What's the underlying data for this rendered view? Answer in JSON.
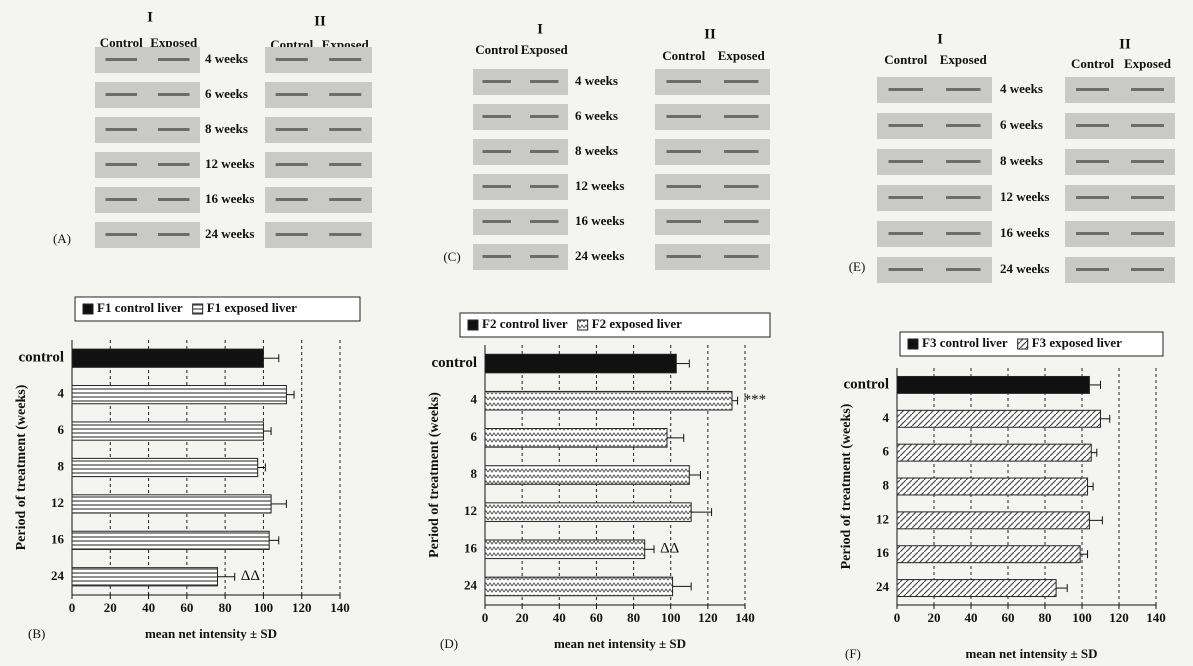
{
  "blots": [
    {
      "letter": "(A)",
      "groups": [
        {
          "name": "I",
          "columns": [
            "Control",
            "Exposed"
          ]
        },
        {
          "name": "II",
          "columns": [
            "Control",
            "Exposed"
          ]
        }
      ],
      "rows": [
        "4 weeks",
        "6 weeks",
        "8 weeks",
        "12 weeks",
        "16 weeks",
        "24 weeks"
      ]
    },
    {
      "letter": "(C)",
      "groups": [
        {
          "name": "I",
          "columns": [
            "Control",
            "Exposed"
          ]
        },
        {
          "name": "II",
          "columns": [
            "Control",
            "Exposed"
          ]
        }
      ],
      "rows": [
        "4 weeks",
        "6 weeks",
        "8 weeks",
        "12 weeks",
        "16 weeks",
        "24 weeks"
      ]
    },
    {
      "letter": "(E)",
      "groups": [
        {
          "name": "I",
          "columns": [
            "Control",
            "Exposed"
          ]
        },
        {
          "name": "II",
          "columns": [
            "Control",
            "Exposed"
          ]
        }
      ],
      "rows": [
        "4 weeks",
        "6 weeks",
        "8 weeks",
        "12 weeks",
        "16 weeks",
        "24 weeks"
      ]
    }
  ],
  "chart_data": [
    {
      "type": "bar",
      "letter": "(B)",
      "y_label": "Period of treatment (weeks)",
      "x_label": "mean net intensity ± SD",
      "categories": [
        "control",
        "4",
        "6",
        "8",
        "12",
        "16",
        "24"
      ],
      "series": [
        {
          "name": "F1 control liver",
          "color": "#111111",
          "values": [
            100,
            null,
            null,
            null,
            null,
            null,
            null
          ],
          "errors": [
            8,
            null,
            null,
            null,
            null,
            null,
            null
          ]
        },
        {
          "name": "F1 exposed liver",
          "color": "#555555",
          "values": [
            null,
            112,
            100,
            97,
            104,
            103,
            76
          ],
          "errors": [
            null,
            4,
            4,
            4,
            8,
            5,
            9
          ],
          "labels": [
            null,
            null,
            null,
            null,
            null,
            null,
            "ΔΔ"
          ]
        }
      ],
      "xlim": [
        0,
        140
      ],
      "xticks": [
        0,
        20,
        40,
        60,
        80,
        100,
        120,
        140
      ],
      "grid": true
    },
    {
      "type": "bar",
      "letter": "(D)",
      "y_label": "Period of treatment (weeks)",
      "x_label": "mean net intensity ± SD",
      "categories": [
        "control",
        "4",
        "6",
        "8",
        "12",
        "16",
        "24"
      ],
      "series": [
        {
          "name": "F2 control liver",
          "color": "#111111",
          "values": [
            103,
            null,
            null,
            null,
            null,
            null,
            null
          ],
          "errors": [
            7,
            null,
            null,
            null,
            null,
            null,
            null
          ]
        },
        {
          "name": "F2 exposed liver",
          "color": "#555555",
          "values": [
            null,
            133,
            98,
            110,
            111,
            86,
            101
          ],
          "errors": [
            null,
            3,
            9,
            6,
            11,
            5,
            10
          ],
          "labels": [
            null,
            "***",
            null,
            null,
            null,
            "ΔΔ",
            null
          ]
        }
      ],
      "xlim": [
        0,
        140
      ],
      "xticks": [
        0,
        20,
        40,
        60,
        80,
        100,
        120,
        140
      ],
      "grid": true
    },
    {
      "type": "bar",
      "letter": "(F)",
      "y_label": "Period of treatment (weeks)",
      "x_label": "mean net intensity ± SD",
      "categories": [
        "control",
        "4",
        "6",
        "8",
        "12",
        "16",
        "24"
      ],
      "series": [
        {
          "name": "F3 control liver",
          "color": "#111111",
          "values": [
            104,
            null,
            null,
            null,
            null,
            null,
            null
          ],
          "errors": [
            6,
            null,
            null,
            null,
            null,
            null,
            null
          ]
        },
        {
          "name": "F3 exposed liver",
          "color": "#555555",
          "values": [
            null,
            110,
            105,
            103,
            104,
            99,
            86
          ],
          "errors": [
            null,
            5,
            3,
            3,
            7,
            4,
            6
          ]
        }
      ],
      "xlim": [
        0,
        140
      ],
      "xticks": [
        0,
        20,
        40,
        60,
        80,
        100,
        120,
        140
      ],
      "grid": true
    }
  ]
}
